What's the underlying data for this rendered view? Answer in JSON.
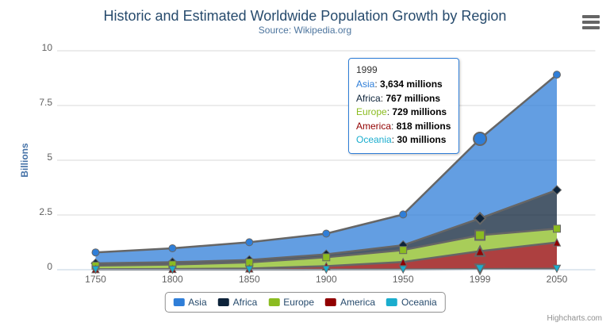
{
  "header": {
    "title": "Historic and Estimated Worldwide Population Growth by Region",
    "subtitle": "Source: Wikipedia.org"
  },
  "chart_data": {
    "type": "area",
    "stacking": "normal",
    "title": "Historic and Estimated Worldwide Population Growth by Region",
    "subtitle": "Source: Wikipedia.org",
    "categories": [
      "1750",
      "1800",
      "1850",
      "1900",
      "1950",
      "1999",
      "2050"
    ],
    "xlabel": "",
    "ylabel": "Billions",
    "ylim": [
      0,
      10
    ],
    "yticks": [
      "0",
      "2.5",
      "5",
      "7.5",
      "10"
    ],
    "unit": "millions",
    "grid": "horizontal",
    "legend_position": "bottom",
    "hover_category_index": 5,
    "line_color": "#666666",
    "fill_opacity": 0.75,
    "axis_line_color": "#c0d0e0",
    "grid_line_color": "#d8d8d8",
    "series": [
      {
        "name": "Asia",
        "color": "#2f7ed8",
        "marker": "circle",
        "values": [
          502,
          635,
          809,
          947,
          1402,
          3634,
          5268
        ]
      },
      {
        "name": "Africa",
        "color": "#0d233a",
        "marker": "diamond",
        "values": [
          106,
          107,
          111,
          133,
          221,
          767,
          1766
        ]
      },
      {
        "name": "Europe",
        "color": "#8bbc21",
        "marker": "square",
        "values": [
          163,
          203,
          276,
          408,
          547,
          729,
          628
        ]
      },
      {
        "name": "America",
        "color": "#910000",
        "marker": "triangle",
        "values": [
          18,
          31,
          54,
          156,
          339,
          818,
          1201
        ]
      },
      {
        "name": "Oceania",
        "color": "#1aadce",
        "marker": "triangle-down",
        "values": [
          2,
          2,
          2,
          6,
          13,
          30,
          46
        ]
      }
    ]
  },
  "tooltip": {
    "header": "1999",
    "rows": [
      {
        "name": "Asia",
        "value": "3,634 millions",
        "color": "#2f7ed8"
      },
      {
        "name": "Africa",
        "value": "767 millions",
        "color": "#0d233a"
      },
      {
        "name": "Europe",
        "value": "729 millions",
        "color": "#8bbc21"
      },
      {
        "name": "America",
        "value": "818 millions",
        "color": "#910000"
      },
      {
        "name": "Oceania",
        "value": "30 millions",
        "color": "#1aadce"
      }
    ]
  },
  "icons": {
    "context_menu": "hamburger-icon"
  },
  "credits": {
    "label": "Highcharts.com"
  }
}
